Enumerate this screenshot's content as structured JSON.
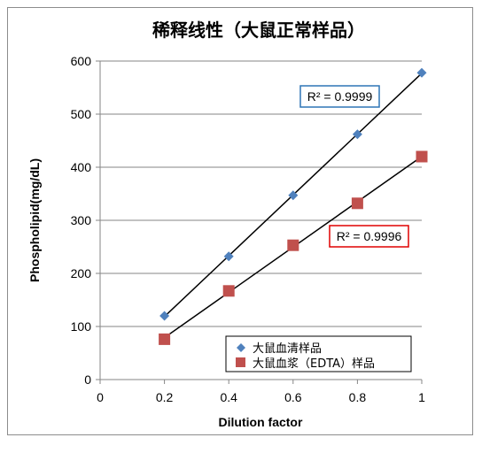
{
  "chart_data": {
    "type": "scatter",
    "title": "稀释线性（大鼠正常样品）",
    "xlabel": "Dilution factor",
    "ylabel": "Phospholipid(mg/dL)",
    "xlim": [
      0,
      1
    ],
    "ylim": [
      0,
      600
    ],
    "xticks": [
      "0",
      "0.2",
      "0.4",
      "0.6",
      "0.8",
      "1"
    ],
    "yticks": [
      "0",
      "100",
      "200",
      "300",
      "400",
      "500",
      "600"
    ],
    "grid": "horizontal",
    "legend_position": "bottom-right",
    "series": [
      {
        "name": "大鼠血清样品",
        "marker": "diamond",
        "color": "#4f81bd",
        "x": [
          0.2,
          0.4,
          0.6,
          0.8,
          1.0
        ],
        "y": [
          120,
          232,
          347,
          462,
          578
        ],
        "trendline": {
          "r2_label": "R² = 0.9999",
          "border_color": "#2e75b6"
        }
      },
      {
        "name": "大鼠血浆（EDTA）样品",
        "marker": "square",
        "color": "#c0504d",
        "x": [
          0.2,
          0.4,
          0.6,
          0.8,
          1.0
        ],
        "y": [
          76,
          167,
          253,
          332,
          420
        ],
        "trendline": {
          "r2_label": "R² = 0.9996",
          "border_color": "#e00000"
        }
      }
    ]
  }
}
